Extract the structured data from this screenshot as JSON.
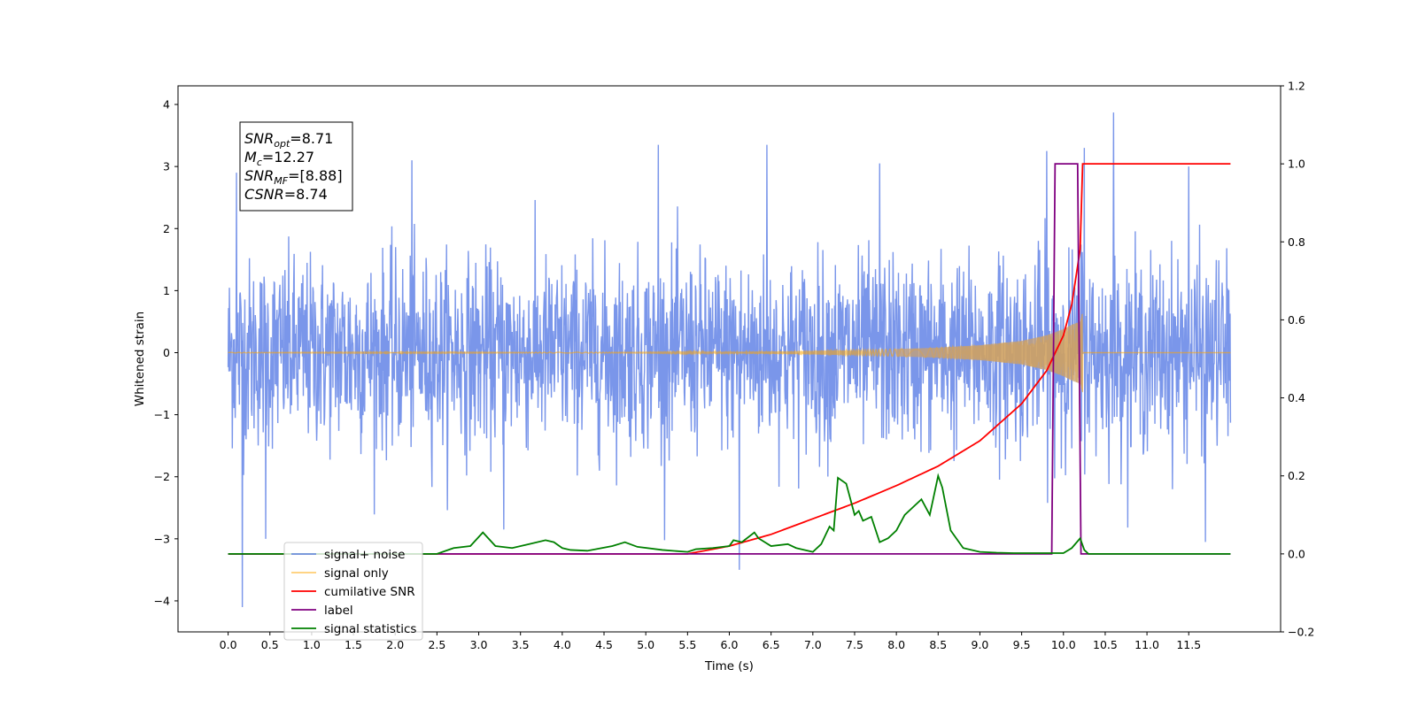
{
  "chart_data": {
    "type": "line",
    "xlabel": "Time (s)",
    "ylabel": "Whitened strain",
    "xlim": [
      -0.6,
      12.6
    ],
    "ylim_left": [
      -4.5,
      4.3
    ],
    "ylim_right": [
      -0.2,
      1.2
    ],
    "x_ticks": [
      "0.0",
      "0.5",
      "1.0",
      "1.5",
      "2.0",
      "2.5",
      "3.0",
      "3.5",
      "4.0",
      "4.5",
      "5.0",
      "5.5",
      "6.0",
      "6.5",
      "7.0",
      "7.5",
      "8.0",
      "8.5",
      "9.0",
      "9.5",
      "10.0",
      "10.5",
      "11.0",
      "11.5"
    ],
    "y_ticks_left": [
      "4",
      "3",
      "2",
      "1",
      "0",
      "−1",
      "−2",
      "−3",
      "−4"
    ],
    "y_ticks_right": [
      "1.2",
      "1.0",
      "0.8",
      "0.6",
      "0.4",
      "0.2",
      "0.0",
      "−0.2"
    ],
    "annotations": [
      {
        "sym": "SNR",
        "sub": "opt",
        "val": "=8.71"
      },
      {
        "sym": "M",
        "sub": "c",
        "val": "=12.27"
      },
      {
        "sym": "SNR",
        "sub": "MF",
        "val": "=[8.88]"
      },
      {
        "sym": "CSNR",
        "sub": "",
        "val": "=8.74"
      }
    ],
    "legend_position": "lower-left",
    "series": [
      {
        "name": "signal+ noise",
        "color": "#4169e1",
        "axis": "left",
        "x_range": [
          0,
          12
        ],
        "noise_sigma": 0.75,
        "peaks": [
          [
            0.17,
            -4.1
          ],
          [
            6.12,
            -3.5
          ],
          [
            10.6,
            3.87
          ],
          [
            9.8,
            3.25
          ],
          [
            10.25,
            3.3
          ],
          [
            6.45,
            3.35
          ],
          [
            5.15,
            3.35
          ],
          [
            2.2,
            3.1
          ],
          [
            0.1,
            2.9
          ],
          [
            7.8,
            3.05
          ],
          [
            11.5,
            3.0
          ],
          [
            3.3,
            -2.85
          ],
          [
            0.45,
            -3.0
          ],
          [
            11.7,
            -3.05
          ]
        ]
      },
      {
        "name": "signal only",
        "color": "#ffa500",
        "axis": "left",
        "x_range": [
          0,
          12
        ],
        "chirp_end": 10.23,
        "envelope": [
          [
            0,
            0.005
          ],
          [
            5.0,
            0.008
          ],
          [
            6.5,
            0.02
          ],
          [
            7.5,
            0.04
          ],
          [
            8.5,
            0.08
          ],
          [
            9.0,
            0.12
          ],
          [
            9.5,
            0.19
          ],
          [
            9.8,
            0.28
          ],
          [
            10.0,
            0.38
          ],
          [
            10.1,
            0.45
          ],
          [
            10.2,
            0.5
          ],
          [
            10.23,
            0.65
          ]
        ]
      },
      {
        "name": "cumilative SNR",
        "color": "#ff0000",
        "axis": "right",
        "x": [
          0,
          5.5,
          6.0,
          6.5,
          7.0,
          7.5,
          8.0,
          8.5,
          9.0,
          9.5,
          9.8,
          10.0,
          10.1,
          10.2,
          10.23,
          12.0
        ],
        "y": [
          0,
          0.0,
          0.02,
          0.05,
          0.09,
          0.13,
          0.175,
          0.225,
          0.29,
          0.385,
          0.47,
          0.56,
          0.64,
          0.78,
          1.0,
          1.0
        ]
      },
      {
        "name": "label",
        "color": "#800080",
        "axis": "right",
        "x": [
          0,
          9.86,
          9.9,
          10.17,
          10.21,
          12.0
        ],
        "y": [
          0,
          0,
          1,
          1,
          0,
          0
        ]
      },
      {
        "name": "signal statistics",
        "color": "#008000",
        "axis": "right",
        "x": [
          0,
          2.5,
          2.7,
          2.9,
          3.05,
          3.2,
          3.4,
          3.6,
          3.8,
          3.9,
          4.0,
          4.1,
          4.3,
          4.6,
          4.75,
          4.9,
          5.2,
          5.5,
          5.6,
          5.8,
          6.0,
          6.05,
          6.15,
          6.3,
          6.35,
          6.5,
          6.7,
          6.8,
          7.0,
          7.1,
          7.2,
          7.25,
          7.3,
          7.4,
          7.5,
          7.55,
          7.6,
          7.7,
          7.8,
          7.9,
          8.0,
          8.1,
          8.2,
          8.3,
          8.4,
          8.5,
          8.55,
          8.65,
          8.8,
          9.0,
          9.2,
          9.4,
          9.6,
          10.0,
          10.1,
          10.2,
          10.25,
          10.3,
          12.0
        ],
        "y": [
          0,
          0.0,
          0.015,
          0.02,
          0.055,
          0.02,
          0.015,
          0.025,
          0.035,
          0.03,
          0.015,
          0.01,
          0.008,
          0.02,
          0.03,
          0.018,
          0.01,
          0.005,
          0.012,
          0.015,
          0.02,
          0.035,
          0.03,
          0.055,
          0.04,
          0.02,
          0.025,
          0.015,
          0.005,
          0.025,
          0.07,
          0.06,
          0.195,
          0.18,
          0.1,
          0.11,
          0.085,
          0.095,
          0.03,
          0.04,
          0.06,
          0.1,
          0.12,
          0.14,
          0.1,
          0.2,
          0.17,
          0.06,
          0.015,
          0.005,
          0.003,
          0.002,
          0.002,
          0.002,
          0.015,
          0.04,
          0.01,
          0.0,
          0.0
        ]
      }
    ]
  }
}
